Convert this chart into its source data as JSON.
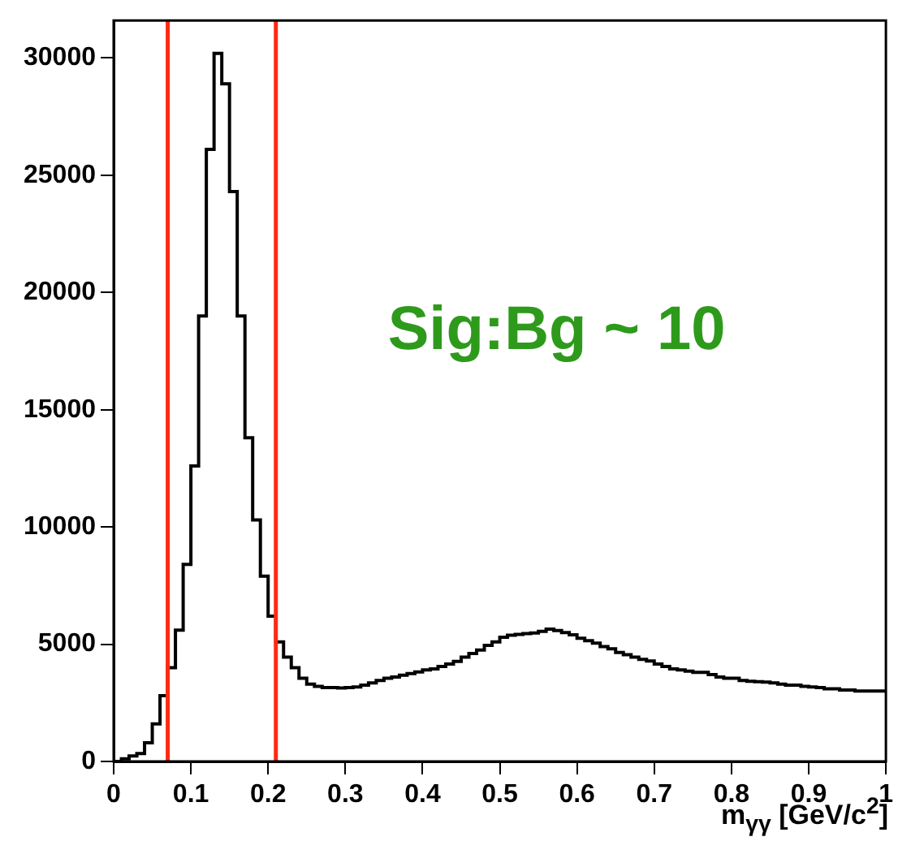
{
  "chart_data": {
    "type": "histogram",
    "xlabel": "m$_{γγ}$ [GeV/c$^{2}$]",
    "bins": [
      0,
      0.01,
      0.02,
      0.03,
      0.04,
      0.05,
      0.06,
      0.07,
      0.08,
      0.09,
      0.1,
      0.11,
      0.12,
      0.13,
      0.14,
      0.15,
      0.16,
      0.17,
      0.18,
      0.19,
      0.2,
      0.21,
      0.22,
      0.23,
      0.24,
      0.25,
      0.26,
      0.27,
      0.28,
      0.29,
      0.3,
      0.31,
      0.32,
      0.33,
      0.34,
      0.35,
      0.36,
      0.37,
      0.38,
      0.39,
      0.4,
      0.41,
      0.42,
      0.43,
      0.44,
      0.45,
      0.46,
      0.47,
      0.48,
      0.49,
      0.5,
      0.51,
      0.52,
      0.53,
      0.54,
      0.55,
      0.56,
      0.57,
      0.58,
      0.59,
      0.6,
      0.61,
      0.62,
      0.63,
      0.64,
      0.65,
      0.66,
      0.67,
      0.68,
      0.69,
      0.7,
      0.71,
      0.72,
      0.73,
      0.74,
      0.75,
      0.76,
      0.77,
      0.78,
      0.79,
      0.8,
      0.81,
      0.82,
      0.83,
      0.84,
      0.85,
      0.86,
      0.87,
      0.88,
      0.89,
      0.9,
      0.91,
      0.92,
      0.93,
      0.94,
      0.95,
      0.96,
      0.97,
      0.98,
      0.99,
      1
    ],
    "values": [
      0,
      110,
      230,
      340,
      800,
      1600,
      2800,
      4000,
      5600,
      8400,
      12600,
      19000,
      26100,
      30200,
      28900,
      24300,
      19000,
      13800,
      10300,
      7900,
      6200,
      5100,
      4450,
      4000,
      3550,
      3300,
      3200,
      3150,
      3150,
      3130,
      3150,
      3180,
      3250,
      3350,
      3450,
      3550,
      3600,
      3680,
      3750,
      3820,
      3900,
      3950,
      4050,
      4150,
      4270,
      4450,
      4600,
      4750,
      4950,
      5100,
      5300,
      5380,
      5420,
      5450,
      5480,
      5550,
      5640,
      5580,
      5500,
      5400,
      5250,
      5150,
      5050,
      4900,
      4800,
      4650,
      4550,
      4450,
      4350,
      4280,
      4150,
      4050,
      3950,
      3900,
      3850,
      3800,
      3800,
      3700,
      3600,
      3550,
      3550,
      3450,
      3420,
      3400,
      3380,
      3350,
      3300,
      3250,
      3250,
      3200,
      3180,
      3150,
      3100,
      3100,
      3050,
      3050,
      3000,
      3000,
      3000,
      3000
    ],
    "color": "#000000",
    "xlim": [
      0,
      1
    ],
    "xticks": [
      0,
      0.1,
      0.2,
      0.3,
      0.4,
      0.5,
      0.6,
      0.7,
      0.8,
      0.9,
      1
    ],
    "ylim": [
      0,
      31600
    ],
    "yticks": [
      0,
      5000,
      10000,
      15000,
      20000,
      25000,
      30000
    ],
    "grid": false,
    "legend": false,
    "ref_lines": [
      {
        "axis": "x",
        "value": 0.07,
        "color": "#ff2a10"
      },
      {
        "axis": "x",
        "value": 0.21,
        "color": "#ff2a10"
      }
    ],
    "annotations": [
      "Sig:Bg ~ 10"
    ]
  }
}
